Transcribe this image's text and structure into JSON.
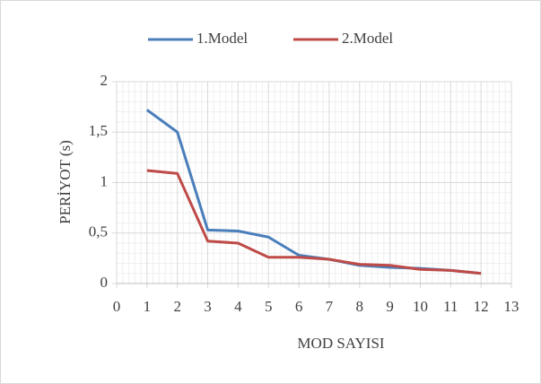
{
  "chart_data": {
    "type": "line",
    "x_label": "MOD SAYISI",
    "y_label": "PERİYOT (s)",
    "x": [
      1,
      2,
      3,
      4,
      5,
      6,
      7,
      8,
      9,
      10,
      11,
      12
    ],
    "series": [
      {
        "name": "1.Model",
        "color": "#4a7ebb",
        "values": [
          1.72,
          1.5,
          0.53,
          0.52,
          0.46,
          0.28,
          0.24,
          0.18,
          0.16,
          0.15,
          0.13,
          0.1
        ]
      },
      {
        "name": "2.Model",
        "color": "#be4b48",
        "values": [
          1.12,
          1.09,
          0.42,
          0.4,
          0.26,
          0.26,
          0.24,
          0.19,
          0.18,
          0.14,
          0.13,
          0.1
        ]
      }
    ],
    "xlim": [
      0,
      13
    ],
    "xticks": [
      0,
      1,
      2,
      3,
      4,
      5,
      6,
      7,
      8,
      9,
      10,
      11,
      12,
      13
    ],
    "ylim": [
      0,
      2
    ],
    "yticks": [
      0,
      {
        "value": 0.5,
        "label": "0,5"
      },
      1,
      {
        "value": 1.5,
        "label": "1,5"
      },
      2
    ],
    "grid": true,
    "minor_grid": true,
    "legend": "top"
  }
}
